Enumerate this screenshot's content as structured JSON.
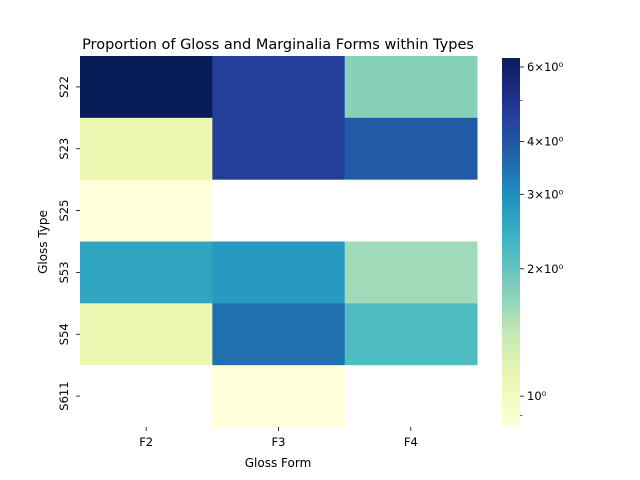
{
  "chart_data": {
    "type": "heatmap",
    "title": "Proportion of Gloss and Marginalia Forms within Types",
    "xlabel": "Gloss Form",
    "ylabel": "Gloss Type",
    "x_categories": [
      "F2",
      "F3",
      "F4"
    ],
    "y_categories": [
      "S22",
      "S23",
      "S25",
      "S53",
      "S54",
      "S611"
    ],
    "values": [
      [
        6.3,
        4.6,
        1.75
      ],
      [
        1.1,
        4.6,
        3.9
      ],
      [
        0.85,
        null,
        null
      ],
      [
        2.6,
        2.8,
        1.6
      ],
      [
        1.1,
        3.5,
        2.2
      ],
      [
        null,
        0.85,
        null
      ]
    ],
    "colorbar": {
      "scale": "log",
      "colormap": "YlGnBu",
      "vmin": 0.85,
      "vmax": 6.3,
      "ticks": [
        {
          "value": 6,
          "label": "6×10⁰"
        },
        {
          "value": 4,
          "label": "4×10⁰"
        },
        {
          "value": 3,
          "label": "3×10⁰"
        },
        {
          "value": 2,
          "label": "2×10⁰"
        },
        {
          "value": 1,
          "label": "10⁰"
        }
      ],
      "minor_ticks": [
        0.9,
        5
      ]
    },
    "colors": {
      "background": "#ffffff",
      "missing": "#ffffff"
    }
  }
}
